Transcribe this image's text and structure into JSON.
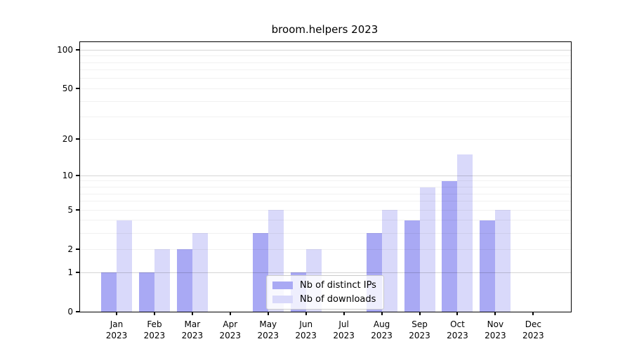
{
  "chart_data": {
    "type": "bar",
    "title": "broom.helpers 2023",
    "categories": [
      "Jan",
      "Feb",
      "Mar",
      "Apr",
      "May",
      "Jun",
      "Jul",
      "Aug",
      "Sep",
      "Oct",
      "Nov",
      "Dec"
    ],
    "x_year_label": "2023",
    "series": [
      {
        "name": "Nb of distinct IPs",
        "color": "#a9a9f4",
        "values": [
          1,
          1,
          2,
          0,
          3,
          1,
          0,
          3,
          4,
          9,
          4,
          0
        ]
      },
      {
        "name": "Nb of downloads",
        "color": "#d9d9fa",
        "values": [
          4,
          2,
          3,
          0,
          5,
          2,
          0,
          5,
          8,
          15,
          5,
          0
        ]
      }
    ],
    "y_axis": {
      "scale": "log1p",
      "tick_values": [
        0,
        1,
        2,
        5,
        10,
        20,
        50,
        100
      ],
      "tick_labels": [
        "0",
        "1",
        "2",
        "5",
        "10",
        "20",
        "50",
        "100"
      ],
      "major_grid_values": [
        1,
        10,
        100
      ],
      "minor_grid_values": [
        2,
        3,
        4,
        5,
        6,
        7,
        8,
        9,
        20,
        30,
        40,
        50,
        60,
        70,
        80,
        90
      ],
      "ylim": [
        0,
        115
      ]
    },
    "legend": {
      "position": "lower center"
    },
    "grid": true,
    "colors": {
      "major_grid": "rgba(0,0,0,0.16)",
      "minor_grid": "rgba(0,0,0,0.055)",
      "spine": "#000000",
      "background": "#ffffff",
      "text": "#000000"
    }
  }
}
